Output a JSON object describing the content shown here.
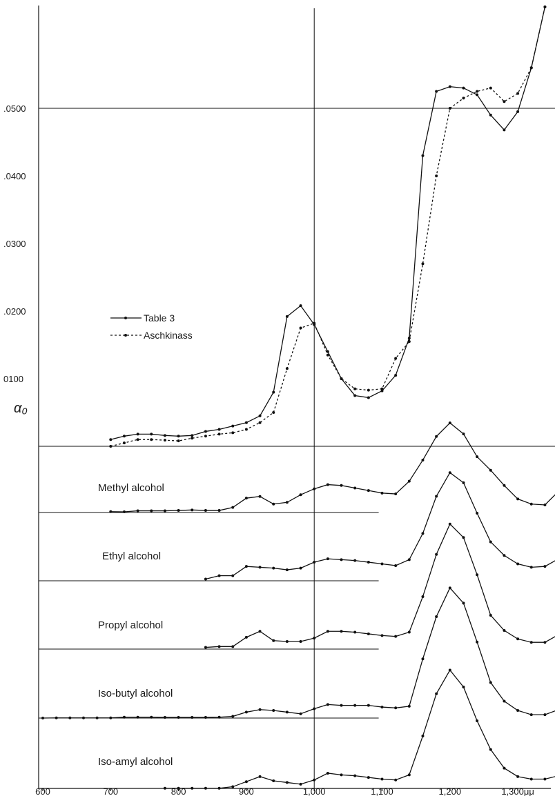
{
  "chart_data": {
    "type": "line",
    "ylabel": "α₀",
    "x_ticks": [
      "600",
      "700",
      "800",
      "900",
      "1,000",
      "1,100",
      "1,200",
      "1,300μμ"
    ],
    "y_ticks": [
      ".0500",
      ".0400",
      ".0300",
      ".0200",
      "0100"
    ],
    "xlim": [
      600,
      1360
    ],
    "ylim_water": [
      0,
      0.065
    ],
    "legend": {
      "solid": "Table 3",
      "dotted": "Aschkinass"
    },
    "water_series": [
      {
        "name": "Table 3",
        "style": "solid",
        "x": [
          700,
          720,
          740,
          760,
          780,
          800,
          820,
          840,
          860,
          880,
          900,
          920,
          940,
          960,
          980,
          1000,
          1020,
          1040,
          1060,
          1080,
          1100,
          1120,
          1140,
          1160,
          1180,
          1200,
          1220,
          1240,
          1260,
          1280,
          1300,
          1320,
          1340
        ],
        "y": [
          0.001,
          0.0015,
          0.0018,
          0.0018,
          0.0016,
          0.0015,
          0.0016,
          0.0022,
          0.0025,
          0.003,
          0.0035,
          0.0045,
          0.008,
          0.0192,
          0.0208,
          0.018,
          0.014,
          0.01,
          0.0075,
          0.0072,
          0.0082,
          0.0105,
          0.016,
          0.043,
          0.0525,
          0.0532,
          0.053,
          0.052,
          0.049,
          0.0468,
          0.0495,
          0.056,
          0.065
        ]
      },
      {
        "name": "Aschkinass",
        "style": "dotted",
        "x": [
          700,
          720,
          740,
          760,
          780,
          800,
          820,
          840,
          860,
          880,
          900,
          920,
          940,
          960,
          980,
          1000,
          1020,
          1040,
          1060,
          1080,
          1100,
          1120,
          1140,
          1160,
          1180,
          1200,
          1220,
          1240,
          1260,
          1280,
          1300,
          1320,
          1340
        ],
        "y": [
          0.0,
          0.0005,
          0.001,
          0.001,
          0.0009,
          0.0008,
          0.0012,
          0.0015,
          0.0018,
          0.002,
          0.0025,
          0.0035,
          0.005,
          0.0115,
          0.0175,
          0.0182,
          0.0135,
          0.01,
          0.0085,
          0.0083,
          0.0085,
          0.013,
          0.0155,
          0.027,
          0.04,
          0.05,
          0.0515,
          0.0525,
          0.053,
          0.051,
          0.0522,
          0.056,
          0.065
        ]
      }
    ],
    "alcohols": [
      {
        "name": "Methyl alcohol",
        "x": [
          700,
          720,
          740,
          760,
          780,
          800,
          820,
          840,
          860,
          880,
          900,
          920,
          940,
          960,
          980,
          1000,
          1020,
          1040,
          1060,
          1080,
          1100,
          1120,
          1140,
          1160,
          1180,
          1200,
          1220,
          1240,
          1260,
          1280,
          1300,
          1320,
          1340,
          1360
        ],
        "y": [
          0.0005,
          0.0004,
          0.001,
          0.001,
          0.001,
          0.0012,
          0.0015,
          0.0012,
          0.0012,
          0.003,
          0.0085,
          0.0095,
          0.005,
          0.006,
          0.0105,
          0.014,
          0.0165,
          0.016,
          0.0145,
          0.013,
          0.0115,
          0.011,
          0.0185,
          0.031,
          0.045,
          0.053,
          0.0465,
          0.033,
          0.025,
          0.016,
          0.008,
          0.005,
          0.0045,
          0.0125
        ]
      },
      {
        "name": "Ethyl alcohol",
        "x": [
          840,
          860,
          880,
          900,
          920,
          940,
          960,
          980,
          1000,
          1020,
          1040,
          1060,
          1080,
          1100,
          1120,
          1140,
          1160,
          1180,
          1200,
          1220,
          1240,
          1260,
          1280,
          1300,
          1320,
          1340,
          1360
        ],
        "y": [
          0.001,
          0.003,
          0.003,
          0.0085,
          0.008,
          0.0075,
          0.0065,
          0.0075,
          0.011,
          0.013,
          0.0125,
          0.012,
          0.011,
          0.01,
          0.009,
          0.0125,
          0.028,
          0.05,
          0.064,
          0.058,
          0.04,
          0.023,
          0.015,
          0.01,
          0.008,
          0.0085,
          0.013
        ]
      },
      {
        "name": "Propyl alcohol",
        "x": [
          840,
          860,
          880,
          900,
          920,
          940,
          960,
          980,
          1000,
          1020,
          1040,
          1060,
          1080,
          1100,
          1120,
          1140,
          1160,
          1180,
          1200,
          1220,
          1240,
          1260,
          1280,
          1300,
          1320,
          1340,
          1360
        ],
        "y": [
          0.001,
          0.0015,
          0.0015,
          0.007,
          0.0105,
          0.005,
          0.0045,
          0.0045,
          0.0065,
          0.0105,
          0.0105,
          0.01,
          0.009,
          0.008,
          0.0075,
          0.01,
          0.031,
          0.056,
          0.074,
          0.066,
          0.044,
          0.02,
          0.011,
          0.006,
          0.004,
          0.004,
          0.0085
        ]
      },
      {
        "name": "Iso-butyl alcohol",
        "x": [
          600,
          620,
          640,
          660,
          680,
          700,
          720,
          740,
          760,
          780,
          800,
          820,
          840,
          860,
          880,
          900,
          920,
          940,
          960,
          980,
          1000,
          1020,
          1040,
          1060,
          1080,
          1100,
          1120,
          1140,
          1160,
          1180,
          1200,
          1220,
          1240,
          1260,
          1280,
          1300,
          1320,
          1340,
          1360
        ],
        "y": [
          0.0,
          0.0001,
          0.0001,
          0.0001,
          0.0001,
          0.0001,
          0.0005,
          0.0005,
          0.0005,
          0.0004,
          0.0004,
          0.0004,
          0.0004,
          0.0005,
          0.001,
          0.0035,
          0.005,
          0.0045,
          0.0035,
          0.0025,
          0.0055,
          0.008,
          0.0075,
          0.0075,
          0.0075,
          0.0065,
          0.006,
          0.007,
          0.035,
          0.06,
          0.077,
          0.068,
          0.045,
          0.021,
          0.01,
          0.0045,
          0.002,
          0.002,
          0.005
        ]
      },
      {
        "name": "Iso-amyl alcohol",
        "x": [
          780,
          800,
          820,
          840,
          860,
          880,
          900,
          920,
          940,
          960,
          980,
          1000,
          1020,
          1040,
          1060,
          1080,
          1100,
          1120,
          1140,
          1160,
          1180,
          1200,
          1220,
          1240,
          1260,
          1280,
          1300,
          1320,
          1340,
          1360
        ],
        "y": [
          0.0001,
          0.0001,
          0.0001,
          0.0001,
          0.0001,
          0.001,
          0.004,
          0.007,
          0.0045,
          0.0035,
          0.0025,
          0.005,
          0.009,
          0.008,
          0.0075,
          0.0065,
          0.0055,
          0.005,
          0.008,
          0.031,
          0.056,
          0.07,
          0.06,
          0.04,
          0.023,
          0.012,
          0.007,
          0.0055,
          0.0055,
          0.0075
        ]
      }
    ]
  }
}
